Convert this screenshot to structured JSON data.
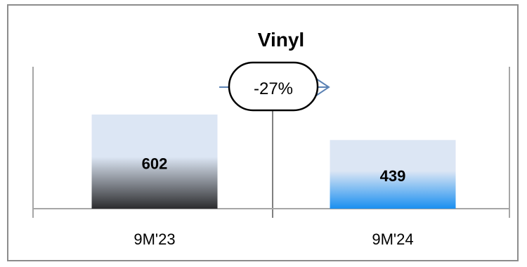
{
  "chart_data": {
    "type": "bar",
    "title": "Vinyl",
    "categories": [
      "9M'23",
      "9M'24"
    ],
    "values": [
      602,
      439
    ],
    "data_labels": [
      "602",
      "439"
    ],
    "change_label": "-27%",
    "ylim": [
      0,
      602
    ],
    "grid": false,
    "legend": "none",
    "colors": {
      "bar_1_top": "#dce6f4",
      "bar_1_bottom": "#2c2c2e",
      "bar_2_top": "#dce6f4",
      "bar_2_bottom": "#1a8ff0",
      "arrow": "#5b82b4",
      "axis": "#a6a6a6"
    }
  }
}
